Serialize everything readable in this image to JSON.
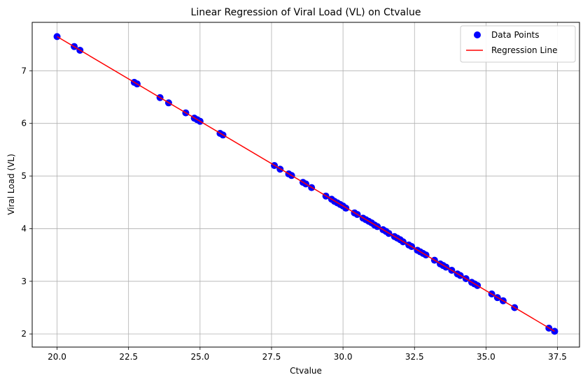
{
  "chart_data": {
    "type": "scatter",
    "title": "Linear Regression of Viral Load (VL) on Ctvalue",
    "xlabel": "Ctvalue",
    "ylabel": "Viral Load (VL)",
    "xlim": [
      19.13,
      38.27
    ],
    "ylim": [
      1.75,
      7.92
    ],
    "xticks": [
      "20.0",
      "22.5",
      "25.0",
      "27.5",
      "30.0",
      "32.5",
      "35.0",
      "37.5"
    ],
    "xtick_values": [
      20.0,
      22.5,
      25.0,
      27.5,
      30.0,
      32.5,
      35.0,
      37.5
    ],
    "yticks": [
      "2",
      "3",
      "4",
      "5",
      "6",
      "7"
    ],
    "ytick_values": [
      2,
      3,
      4,
      5,
      6,
      7
    ],
    "grid": true,
    "legend_position": "top-right",
    "series": [
      {
        "name": "Data Points",
        "kind": "scatter",
        "color": "#0000ff",
        "x": [
          20.0,
          20.6,
          20.8,
          22.7,
          22.8,
          23.6,
          23.9,
          24.5,
          24.8,
          24.9,
          25.0,
          25.7,
          25.8,
          27.6,
          27.8,
          28.1,
          28.2,
          28.6,
          28.7,
          28.9,
          29.4,
          29.6,
          29.7,
          29.8,
          29.9,
          30.0,
          30.1,
          30.4,
          30.5,
          30.7,
          30.8,
          30.9,
          31.0,
          31.1,
          31.2,
          31.4,
          31.5,
          31.6,
          31.8,
          31.9,
          32.0,
          32.1,
          32.3,
          32.4,
          32.6,
          32.7,
          32.8,
          32.9,
          33.2,
          33.4,
          33.5,
          33.6,
          33.8,
          34.0,
          34.1,
          34.3,
          34.5,
          34.6,
          34.7,
          35.2,
          35.4,
          35.6,
          36.0,
          37.2,
          37.4
        ],
        "y": [
          7.65,
          7.46,
          7.39,
          6.78,
          6.75,
          6.49,
          6.39,
          6.2,
          6.1,
          6.07,
          6.04,
          5.81,
          5.78,
          5.2,
          5.13,
          5.04,
          5.01,
          4.88,
          4.85,
          4.78,
          4.62,
          4.56,
          4.52,
          4.49,
          4.46,
          4.43,
          4.39,
          4.3,
          4.27,
          4.2,
          4.17,
          4.14,
          4.11,
          4.07,
          4.04,
          3.98,
          3.95,
          3.91,
          3.85,
          3.82,
          3.79,
          3.75,
          3.69,
          3.66,
          3.59,
          3.56,
          3.53,
          3.5,
          3.4,
          3.33,
          3.3,
          3.27,
          3.21,
          3.14,
          3.11,
          3.05,
          2.98,
          2.95,
          2.92,
          2.76,
          2.69,
          2.63,
          2.5,
          2.11,
          2.05
        ]
      },
      {
        "name": "Regression Line",
        "kind": "line",
        "color": "#ff0000",
        "x": [
          20.0,
          37.4
        ],
        "y": [
          7.65,
          2.05
        ]
      }
    ]
  }
}
